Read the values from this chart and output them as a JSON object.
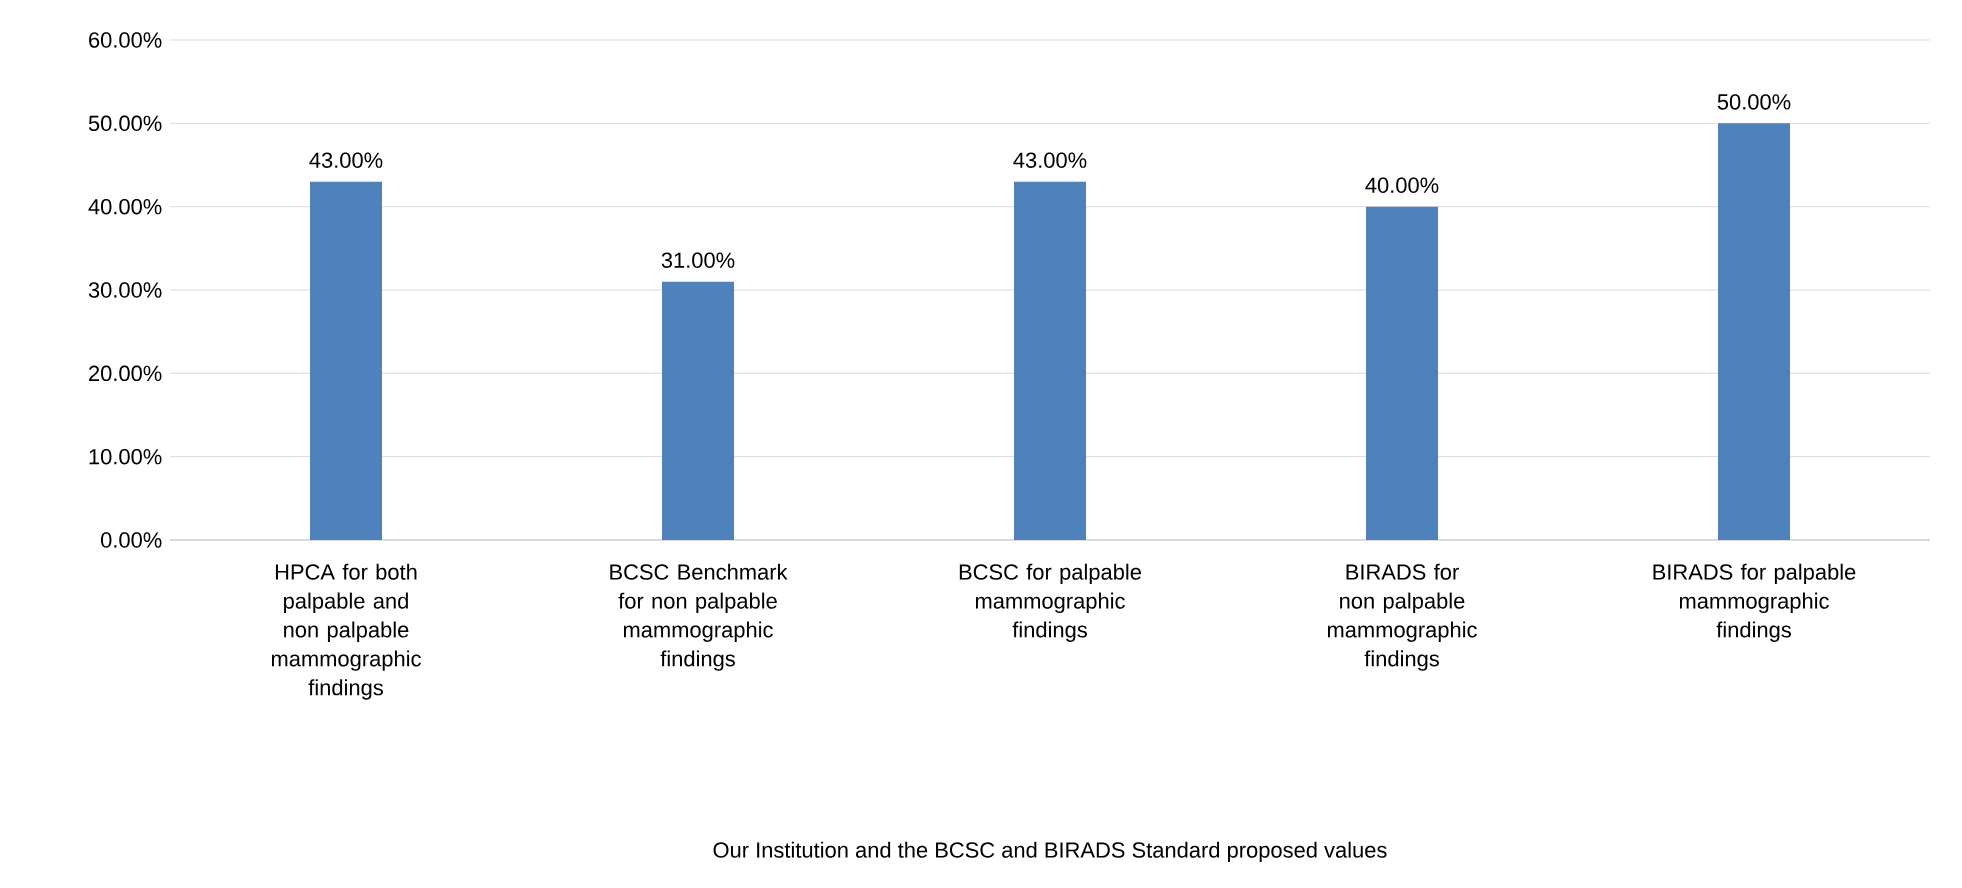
{
  "chart_data": {
    "type": "bar",
    "annotations": [
      "Our Institution and the BCSC and BIRADS Standard proposed values"
    ],
    "categories": [
      "HPCA for both palpable and non palpable mammographic findings",
      "BCSC Benchmark for non palpable mammographic findings",
      "BCSC for palpable mammographic findings",
      "BIRADS for non palpable mammographic findings",
      "BIRADS for palpable mammographic findings"
    ],
    "values": [
      43,
      31,
      43,
      40,
      50
    ],
    "value_labels": [
      "43.00%",
      "31.00%",
      "43.00%",
      "40.00%",
      "50.00%"
    ],
    "color": "#4f81bd",
    "ylim": [
      0,
      60
    ],
    "yticks": [
      {
        "value": 0,
        "label": "0.00%"
      },
      {
        "value": 10,
        "label": "10.00%"
      },
      {
        "value": 20,
        "label": "20.00%"
      },
      {
        "value": 30,
        "label": "30.00%"
      },
      {
        "value": 40,
        "label": "40.00%"
      },
      {
        "value": 50,
        "label": "50.00%"
      },
      {
        "value": 60,
        "label": "60.00%"
      }
    ],
    "grid": "y"
  }
}
